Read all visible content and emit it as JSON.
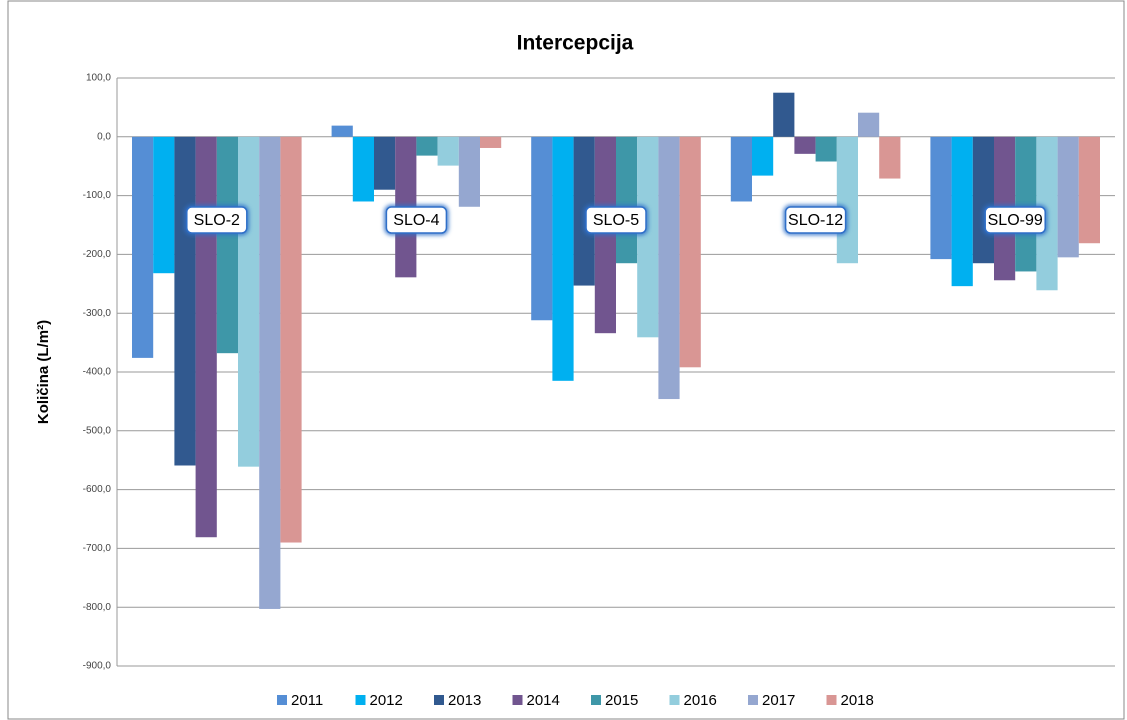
{
  "chart_data": {
    "type": "bar",
    "title": "Intercepcija",
    "y_label": "Količina (L/m²)",
    "categories": [
      "SLO-2",
      "SLO-4",
      "SLO-5",
      "SLO-12",
      "SLO-99"
    ],
    "series": [
      {
        "name": "2011",
        "color": "#558ed5",
        "values": [
          -376,
          19,
          -312,
          -110,
          -208
        ]
      },
      {
        "name": "2012",
        "color": "#00b0f0",
        "values": [
          -232,
          -110,
          -415,
          -66,
          -254
        ]
      },
      {
        "name": "2013",
        "color": "#31598f",
        "values": [
          -559,
          -90,
          -253,
          75,
          -215
        ]
      },
      {
        "name": "2014",
        "color": "#71558f",
        "values": [
          -681,
          -239,
          -334,
          -29,
          -244
        ]
      },
      {
        "name": "2015",
        "color": "#3e97a8",
        "values": [
          -368,
          -32,
          -215,
          -42,
          -229
        ]
      },
      {
        "name": "2016",
        "color": "#93cddd",
        "values": [
          -561,
          -49,
          -341,
          -215,
          -261
        ]
      },
      {
        "name": "2017",
        "color": "#95a7d0",
        "values": [
          -803,
          -119,
          -446,
          41,
          -205
        ]
      },
      {
        "name": "2018",
        "color": "#d99694",
        "values": [
          -690,
          -19,
          -392,
          -71,
          -181
        ]
      }
    ],
    "ylim": [
      -900,
      100
    ],
    "yticks": [
      {
        "value": 100,
        "label": "100,0"
      },
      {
        "value": 0,
        "label": "0,0"
      },
      {
        "value": -100,
        "label": "-100,0"
      },
      {
        "value": -200,
        "label": "-200,0"
      },
      {
        "value": -300,
        "label": "-300,0"
      },
      {
        "value": -400,
        "label": "-400,0"
      },
      {
        "value": -500,
        "label": "-500,0"
      },
      {
        "value": -600,
        "label": "-600,0"
      },
      {
        "value": -700,
        "label": "-700,0"
      },
      {
        "value": -800,
        "label": "-800,0"
      },
      {
        "value": -900,
        "label": "-900,0"
      }
    ],
    "grid": true
  }
}
